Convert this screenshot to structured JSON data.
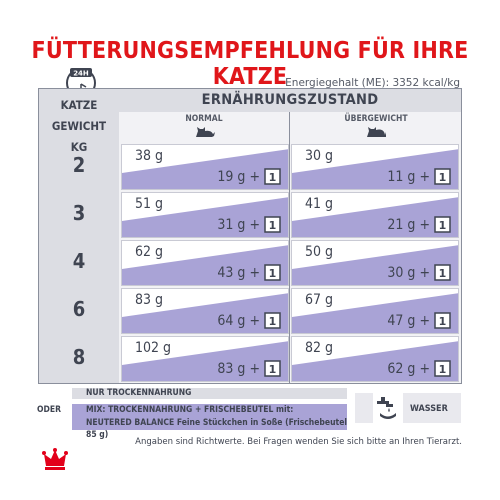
{
  "title": "FÜTTERUNGSEMPFEHLUNG FÜR IHRE KATZE",
  "clock_label": "24H",
  "energy": "Energiegehalt (ME): 3352 kcal/kg",
  "table": {
    "weight_header": [
      "KATZE",
      "GEWICHT",
      "KG"
    ],
    "state_header": "ERNÄHRUNGSZUSTAND",
    "normal_header": "NORMAL",
    "over_header": "ÜBERGEWICHT",
    "rows": [
      {
        "weight": "2",
        "normal_dry": "38 g",
        "normal_mix": "19 g",
        "over_dry": "30 g",
        "over_mix": "11 g"
      },
      {
        "weight": "3",
        "normal_dry": "51 g",
        "normal_mix": "31 g",
        "over_dry": "41 g",
        "over_mix": "21 g"
      },
      {
        "weight": "4",
        "normal_dry": "62 g",
        "normal_mix": "43 g",
        "over_dry": "50 g",
        "over_mix": "30 g"
      },
      {
        "weight": "6",
        "normal_dry": "83 g",
        "normal_mix": "64 g",
        "over_dry": "67 g",
        "over_mix": "47 g"
      },
      {
        "weight": "8",
        "normal_dry": "102 g",
        "normal_mix": "83 g",
        "over_dry": "82 g",
        "over_mix": "62 g"
      }
    ],
    "plus": "+",
    "pouch_count": "1"
  },
  "legend": {
    "oder": "ODER",
    "dry_only": "NUR TROCKENNAHRUNG",
    "mix_line1": "MIX: TROCKENNAHRUNG + FRISCHEBEUTEL mit:",
    "mix_line2": "NEUTERED BALANCE Feine Stückchen in Soße (Frischebeutel 85 g)",
    "water": "WASSER"
  },
  "note": "Angaben sind Richtwerte. Bei Fragen wenden Sie sich bitte an Ihren Tierarzt.",
  "colors": {
    "title_red": "#e0161a",
    "mix_purple": "#a9a3d6",
    "frame_gray": "#dcdde3",
    "brand_red": "#e2001a"
  }
}
